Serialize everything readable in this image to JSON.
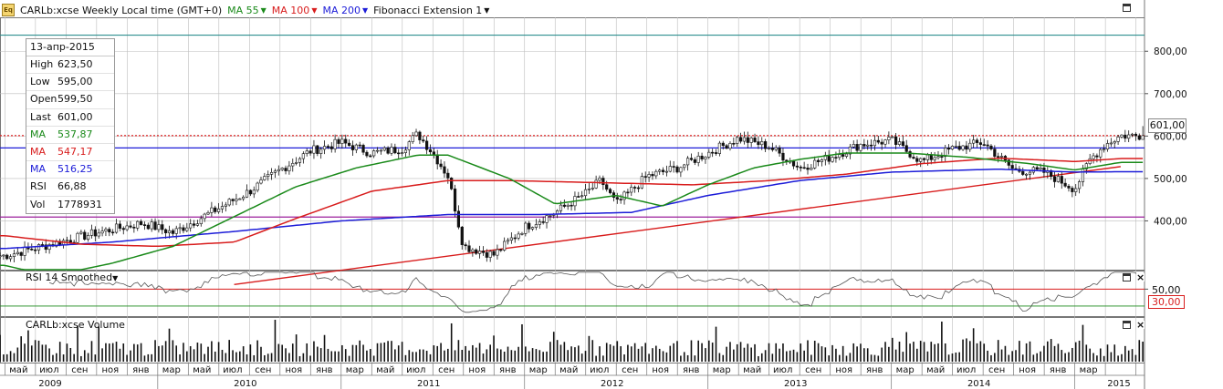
{
  "header": {
    "symbol_label": "CARLb:xcse Weekly Local time (GMT+0)",
    "ma55_label": "MA 55",
    "ma100_label": "MA 100",
    "ma200_label": "MA 200",
    "fib_label": "Fibonacci Extension 1"
  },
  "infobox": {
    "date": "13-апр-2015",
    "rows": [
      {
        "key": "High",
        "value": "623,50"
      },
      {
        "key": "Low",
        "value": "595,00"
      },
      {
        "key": "Open",
        "value": "599,50"
      },
      {
        "key": "Last",
        "value": "601,00"
      },
      {
        "key": "MA",
        "value": "537,87"
      },
      {
        "key": "MA",
        "value": "547,17"
      },
      {
        "key": "MA",
        "value": "516,25"
      },
      {
        "key": "RSI",
        "value": "66,88"
      },
      {
        "key": "Vol",
        "value": "1778931"
      }
    ]
  },
  "colors": {
    "ma55": "#1a8a1a",
    "ma100": "#d81c1c",
    "ma200": "#1c1cd8",
    "candle": "#111111",
    "grid": "#bdbdbd",
    "fib_top": "#2f8f8f",
    "fib_purple": "#9b1f9b",
    "rsi_line": "#555555"
  },
  "rsi_pane": {
    "label": "RSI 14 Smoothed",
    "level_high": "50,00",
    "level_low": "30,00"
  },
  "volume_pane": {
    "label": "CARLb:xcse Volume"
  },
  "price_tag": "601,00",
  "chart_data": {
    "type": "candlestick",
    "title": "CARLb:xcse Weekly",
    "y_ticks": [
      "800,00",
      "700,00",
      "600,00",
      "500,00",
      "400,00"
    ],
    "y_tick_values": [
      800,
      700,
      600,
      500,
      400
    ],
    "ylim": [
      285,
      880
    ],
    "x_month_labels": [
      "май",
      "июл",
      "сен",
      "ноя",
      "янв",
      "мар",
      "май",
      "июл",
      "сен",
      "ноя",
      "янв",
      "мар",
      "май",
      "июл",
      "сен",
      "ноя",
      "янв",
      "мар",
      "май",
      "июл",
      "сен",
      "ноя",
      "янв",
      "мар",
      "май",
      "июл",
      "сен",
      "ноя",
      "янв",
      "мар",
      "май",
      "июл",
      "сен",
      "ноя",
      "янв",
      "мар"
    ],
    "x_year_labels": [
      "2009",
      "2010",
      "2011",
      "2012",
      "2013",
      "2014",
      "2015"
    ],
    "horizontal_levels": [
      {
        "value": 838,
        "style": "solid",
        "color": "#2f8f8f"
      },
      {
        "value": 601,
        "style": "dotted",
        "color": "#d81c1c"
      },
      {
        "value": 572,
        "style": "solid",
        "color": "#1c1cd8"
      },
      {
        "value": 409,
        "style": "solid",
        "color": "#9b1f9b"
      }
    ],
    "trendline": {
      "from": [
        "2010-06",
        250
      ],
      "to": [
        "2015-04",
        528
      ],
      "color": "#d81c1c"
    },
    "price_anchors": [
      [
        "2009-03",
        318
      ],
      [
        "2009-06",
        345
      ],
      [
        "2009-09",
        372
      ],
      [
        "2009-12",
        395
      ],
      [
        "2010-02",
        372
      ],
      [
        "2010-05",
        430
      ],
      [
        "2010-07",
        470
      ],
      [
        "2010-09",
        520
      ],
      [
        "2010-11",
        565
      ],
      [
        "2011-01",
        585
      ],
      [
        "2011-03",
        560
      ],
      [
        "2011-05",
        570
      ],
      [
        "2011-06",
        605
      ],
      [
        "2011-07",
        560
      ],
      [
        "2011-08",
        505
      ],
      [
        "2011-09",
        340
      ],
      [
        "2011-11",
        320
      ],
      [
        "2012-01",
        385
      ],
      [
        "2012-03",
        420
      ],
      [
        "2012-05",
        465
      ],
      [
        "2012-06",
        495
      ],
      [
        "2012-07",
        440
      ],
      [
        "2012-09",
        505
      ],
      [
        "2012-11",
        525
      ],
      [
        "2013-01",
        560
      ],
      [
        "2013-03",
        595
      ],
      [
        "2013-05",
        575
      ],
      [
        "2013-07",
        525
      ],
      [
        "2013-09",
        550
      ],
      [
        "2013-11",
        580
      ],
      [
        "2014-01",
        590
      ],
      [
        "2014-03",
        540
      ],
      [
        "2014-05",
        570
      ],
      [
        "2014-07",
        585
      ],
      [
        "2014-09",
        520
      ],
      [
        "2014-11",
        515
      ],
      [
        "2015-01",
        475
      ],
      [
        "2015-02",
        545
      ],
      [
        "2015-03",
        580
      ],
      [
        "2015-04",
        601
      ]
    ],
    "ma55_anchors": [
      [
        "2009-03",
        295
      ],
      [
        "2009-06",
        270
      ],
      [
        "2009-10",
        300
      ],
      [
        "2010-02",
        340
      ],
      [
        "2010-06",
        410
      ],
      [
        "2010-10",
        480
      ],
      [
        "2011-02",
        525
      ],
      [
        "2011-06",
        555
      ],
      [
        "2011-08",
        555
      ],
      [
        "2011-12",
        500
      ],
      [
        "2012-03",
        440
      ],
      [
        "2012-07",
        460
      ],
      [
        "2012-10",
        435
      ],
      [
        "2013-01",
        485
      ],
      [
        "2013-04",
        525
      ],
      [
        "2013-07",
        545
      ],
      [
        "2013-10",
        560
      ],
      [
        "2014-02",
        560
      ],
      [
        "2014-06",
        550
      ],
      [
        "2014-10",
        535
      ],
      [
        "2015-01",
        520
      ],
      [
        "2015-04",
        538
      ]
    ],
    "ma100_anchors": [
      [
        "2009-03",
        365
      ],
      [
        "2009-08",
        345
      ],
      [
        "2010-01",
        340
      ],
      [
        "2010-06",
        350
      ],
      [
        "2010-10",
        405
      ],
      [
        "2011-03",
        470
      ],
      [
        "2011-08",
        495
      ],
      [
        "2011-12",
        495
      ],
      [
        "2012-06",
        490
      ],
      [
        "2012-12",
        485
      ],
      [
        "2013-05",
        495
      ],
      [
        "2013-10",
        510
      ],
      [
        "2014-03",
        535
      ],
      [
        "2014-08",
        548
      ],
      [
        "2015-01",
        540
      ],
      [
        "2015-04",
        547
      ]
    ],
    "ma200_anchors": [
      [
        "2009-03",
        335
      ],
      [
        "2009-10",
        350
      ],
      [
        "2010-06",
        375
      ],
      [
        "2011-01",
        400
      ],
      [
        "2011-08",
        415
      ],
      [
        "2012-02",
        415
      ],
      [
        "2012-08",
        420
      ],
      [
        "2013-01",
        460
      ],
      [
        "2013-07",
        495
      ],
      [
        "2014-01",
        515
      ],
      [
        "2014-08",
        522
      ],
      [
        "2015-01",
        515
      ],
      [
        "2015-04",
        516
      ]
    ],
    "rsi_levels": [
      50,
      30
    ],
    "volume_note": "weekly volume bars shown in lower pane"
  }
}
